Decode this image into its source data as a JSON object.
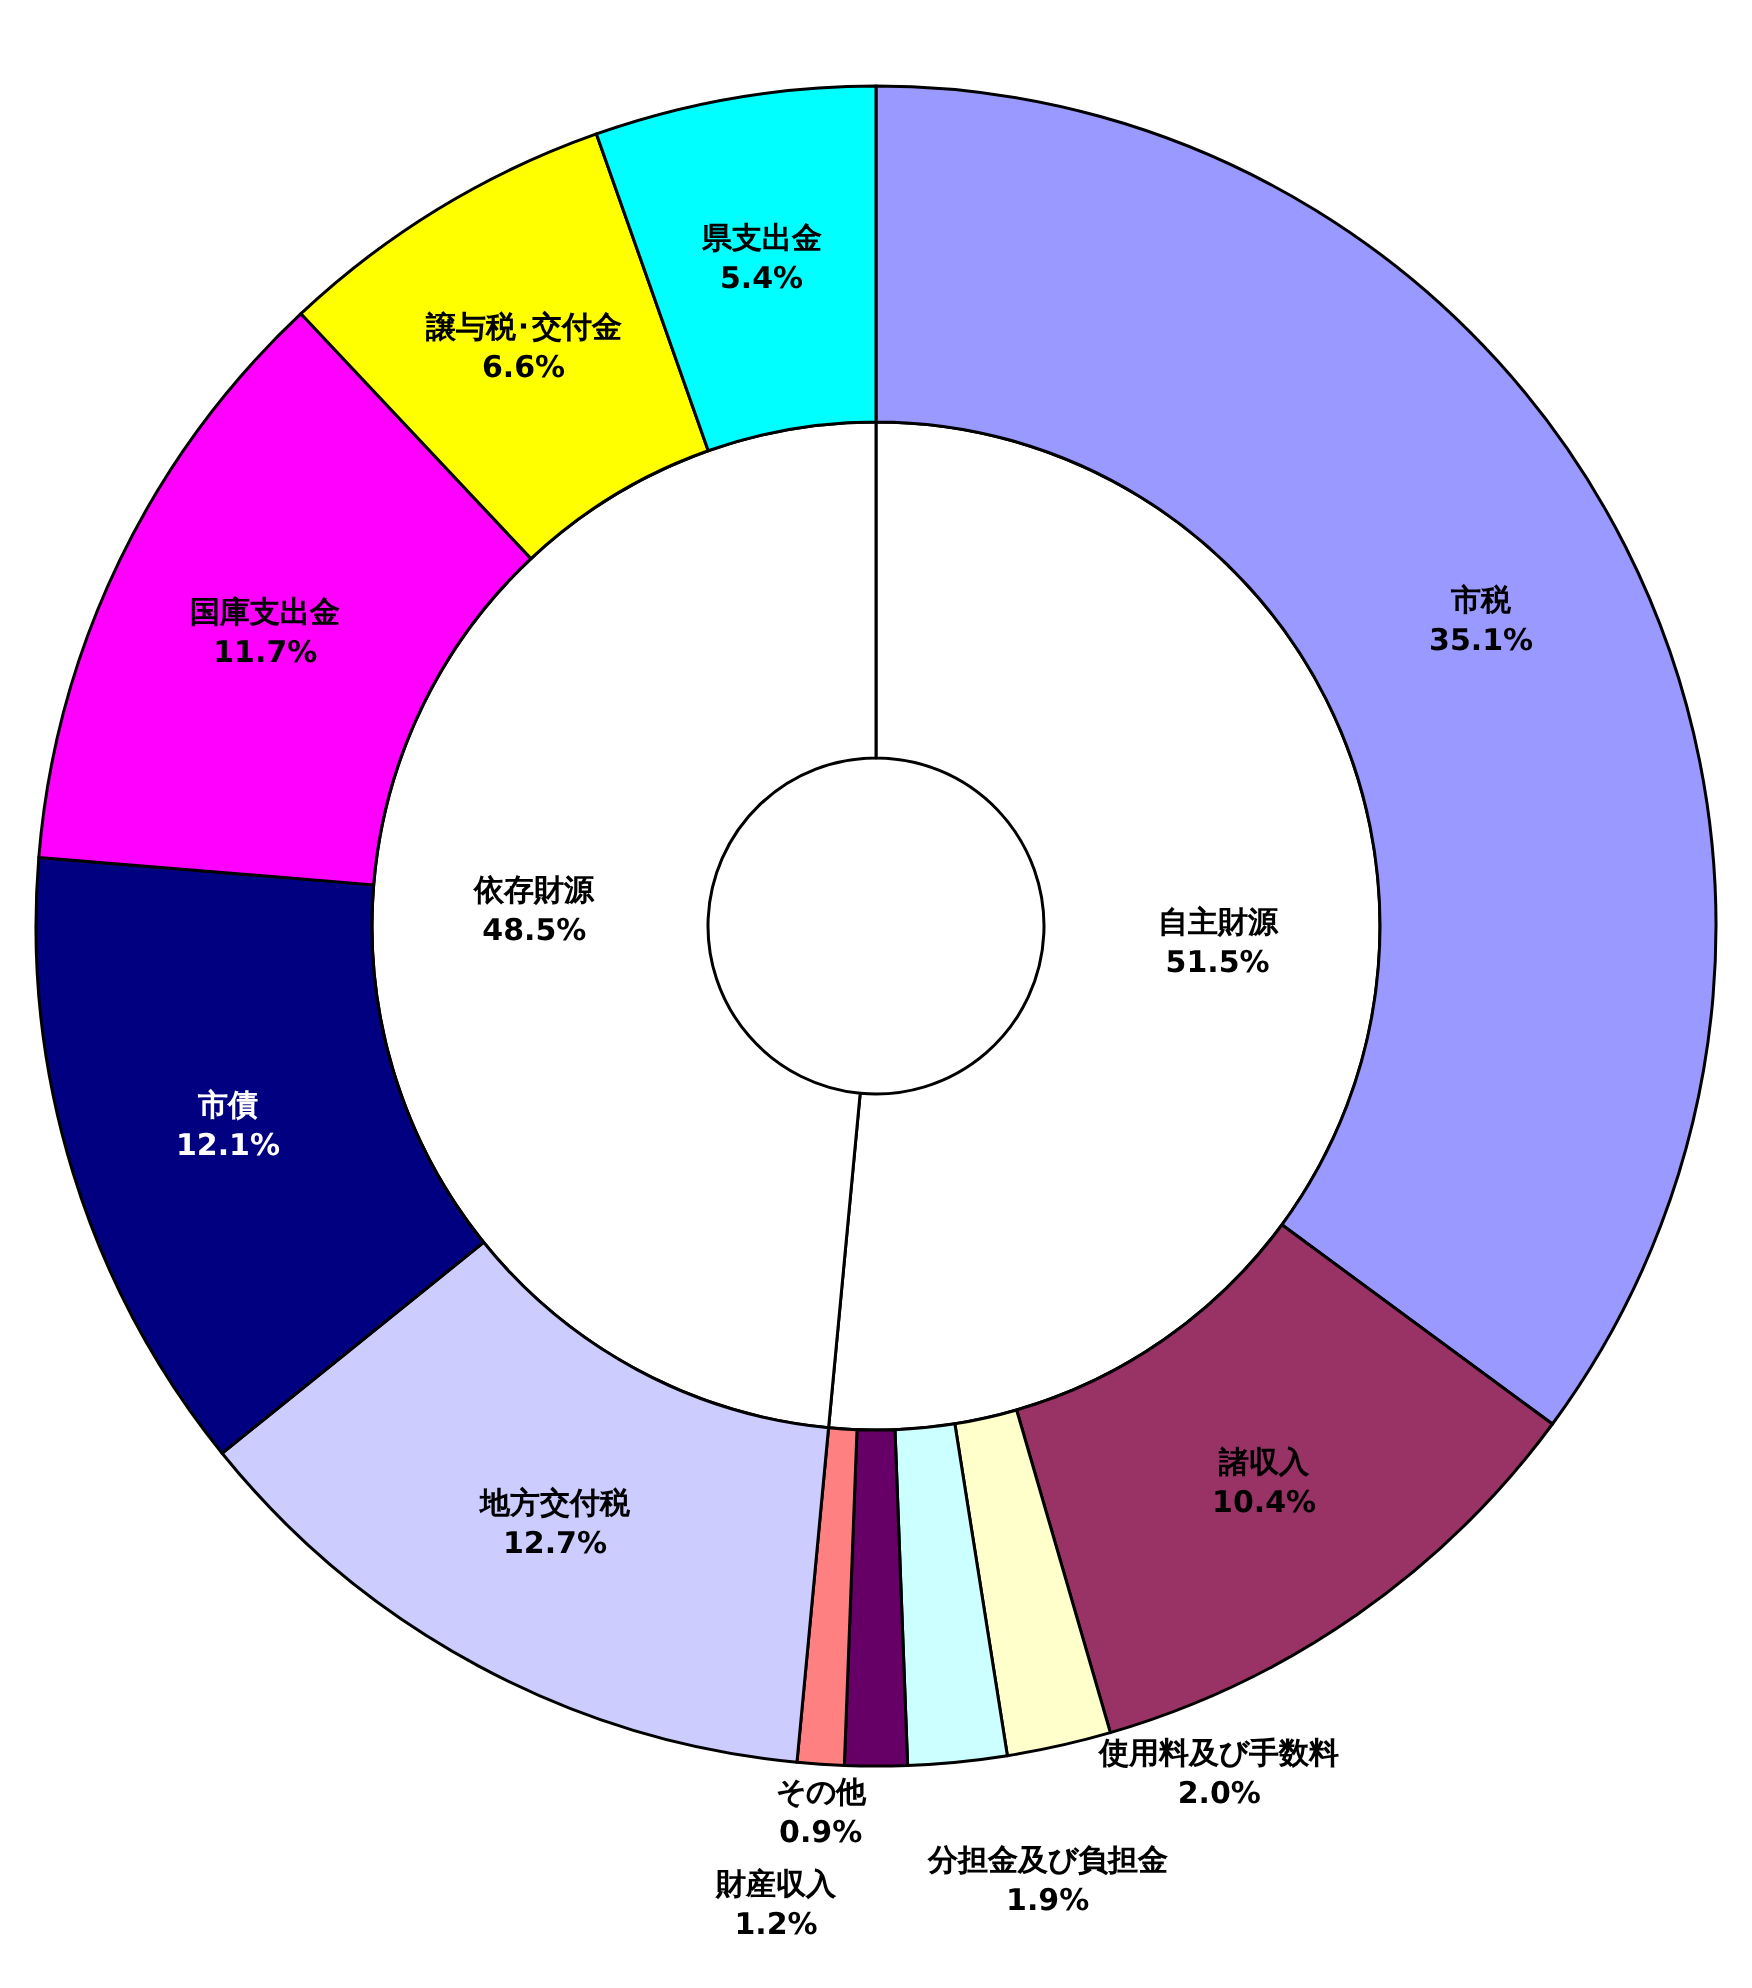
{
  "chart_data": [
    {
      "type": "donut",
      "categories": [
        "自主財源",
        "依存財源"
      ],
      "values": [
        51.5,
        48.5
      ],
      "value_labels": [
        "51.5%",
        "48.5%"
      ],
      "colors": [
        "#ffffff",
        "#ffffff"
      ]
    },
    {
      "type": "donut",
      "categories": [
        "市税",
        "諸収入",
        "使用料及び手数料",
        "分担金及び負担金",
        "財産収入",
        "その他",
        "地方交付税",
        "市債",
        "国庫支出金",
        "譲与税･交付金",
        "県支出金"
      ],
      "values": [
        35.1,
        10.4,
        2.0,
        1.9,
        1.2,
        0.9,
        12.7,
        12.1,
        11.7,
        6.6,
        5.4
      ],
      "value_labels": [
        "35.1%",
        "10.4%",
        "2.0%",
        "1.9%",
        "1.2%",
        "0.9%",
        "12.7%",
        "12.1%",
        "11.7%",
        "6.6%",
        "5.4%"
      ],
      "colors": [
        "#9999ff",
        "#993366",
        "#ffffcc",
        "#ccffff",
        "#660066",
        "#ff8080",
        "#ccccff",
        "#000080",
        "#ff00ff",
        "#ffff00",
        "#00ffff"
      ]
    }
  ]
}
